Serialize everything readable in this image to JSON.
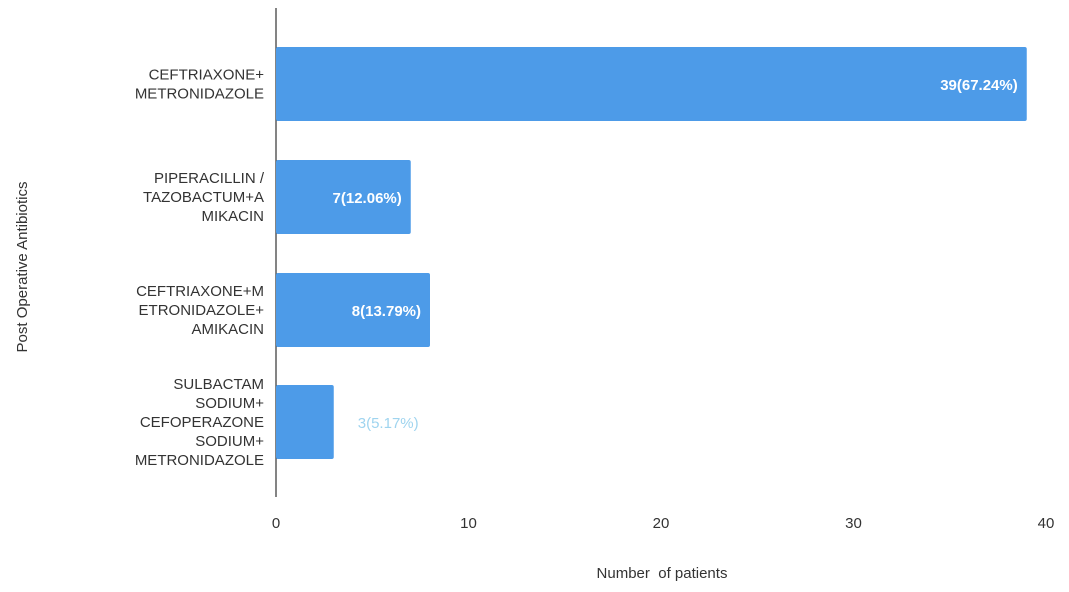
{
  "chart_data": {
    "type": "bar",
    "orientation": "horizontal",
    "title": "",
    "xlabel": "Number  of patients",
    "ylabel": "Post Operative Antibiotics",
    "xlim": [
      0,
      40
    ],
    "xticks": [
      0,
      10,
      20,
      30,
      40
    ],
    "grid": false,
    "categories": [
      [
        "CEFTRIAXONE+",
        "METRONIDAZOLE"
      ],
      [
        "PIPERACILLIN /",
        "TAZOBACTUM+A",
        "MIKACIN"
      ],
      [
        "CEFTRIAXONE+M",
        "ETRONIDAZOLE+",
        "AMIKACIN"
      ],
      [
        "SULBACTAM",
        "SODIUM+",
        "CEFOPERAZONE",
        "SODIUM+",
        "METRONIDAZOLE"
      ]
    ],
    "values": [
      39,
      7,
      8,
      3
    ],
    "data_labels": [
      "39(67.24%)",
      "7(12.06%)",
      "8(13.79%)",
      "3(5.17%)"
    ],
    "colors": {
      "bar": "#4d9be8",
      "label_inside": "#ffffff",
      "label_outside": "#9fd4ef",
      "axis": "#333333",
      "text": "#333333"
    }
  }
}
